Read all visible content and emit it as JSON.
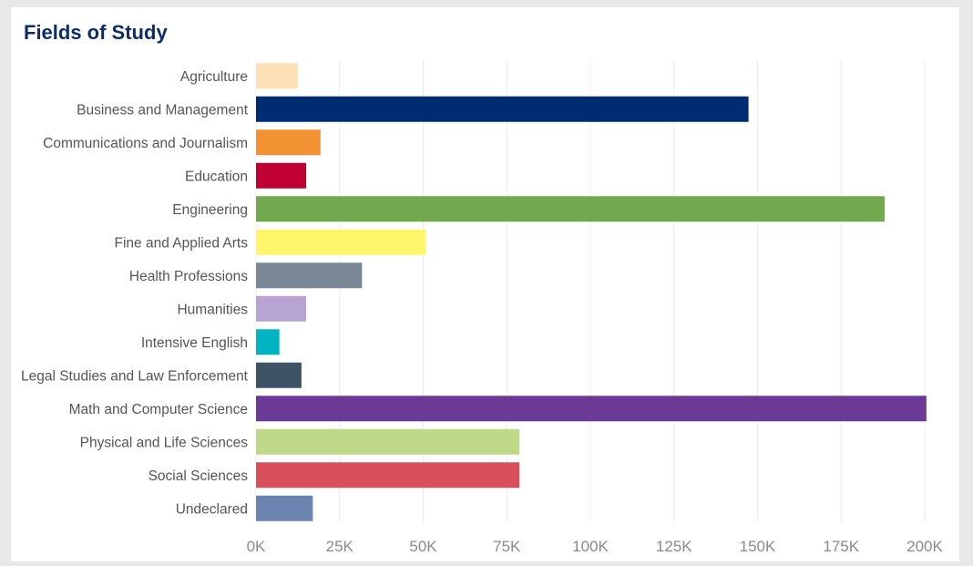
{
  "colors": {
    "title": "#0b2d6b",
    "grid": "#ececec",
    "axis_text": "#8a8a8a"
  },
  "chart_data": {
    "type": "bar",
    "orientation": "horizontal",
    "title": "Fields of Study",
    "xlabel": "",
    "ylabel": "",
    "xlim": [
      0,
      200000
    ],
    "grid": "vertical",
    "x_ticks": [
      0,
      25000,
      50000,
      75000,
      100000,
      125000,
      150000,
      175000,
      200000
    ],
    "x_tick_labels": [
      "0K",
      "25K",
      "50K",
      "75K",
      "100K",
      "125K",
      "150K",
      "175K",
      "200K"
    ],
    "categories": [
      "Agriculture",
      "Business and Management",
      "Communications and Journalism",
      "Education",
      "Engineering",
      "Fine and Applied Arts",
      "Health Professions",
      "Humanities",
      "Intensive English",
      "Legal Studies and Law Enforcement",
      "Math and Computer Science",
      "Physical and Life Sciences",
      "Social Sciences",
      "Undeclared"
    ],
    "values": [
      12500,
      147300,
      19300,
      15000,
      188000,
      50800,
      31700,
      15000,
      7000,
      13600,
      200500,
      78800,
      78800,
      17000
    ],
    "colors": [
      "#fde0b6",
      "#002d72",
      "#f39232",
      "#c00033",
      "#72a94f",
      "#fff56b",
      "#7a8794",
      "#b8a4d3",
      "#00b5c1",
      "#3e5466",
      "#6b3a96",
      "#c0d989",
      "#d9505c",
      "#6b84b0"
    ]
  }
}
